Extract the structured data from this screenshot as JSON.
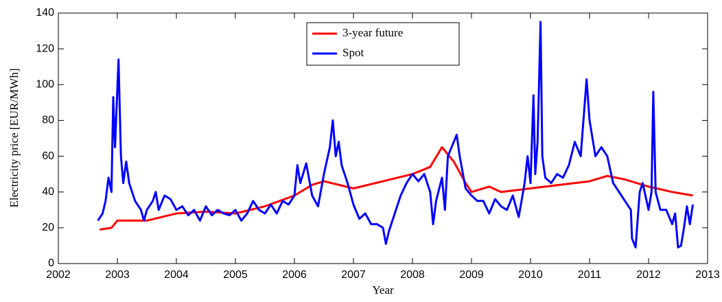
{
  "chart_data": {
    "type": "line",
    "xlabel": "Year",
    "ylabel": "Electricity price [EUR/MWh]",
    "xlim": [
      2002,
      2013
    ],
    "xticks": [
      2002,
      2003,
      2004,
      2005,
      2006,
      2007,
      2008,
      2009,
      2010,
      2011,
      2012,
      2013
    ],
    "ylim": [
      0,
      140
    ],
    "yticks": [
      0,
      20,
      40,
      60,
      80,
      100,
      120,
      140
    ],
    "legend": "upper center",
    "series": [
      {
        "name": "3-year future",
        "color": "#ff0000",
        "x": [
          2002.7,
          2002.9,
          2003.0,
          2003.5,
          2004.0,
          2004.5,
          2005.0,
          2005.5,
          2006.0,
          2006.3,
          2006.5,
          2007.0,
          2007.5,
          2008.0,
          2008.3,
          2008.5,
          2008.7,
          2008.9,
          2009.0,
          2009.3,
          2009.5,
          2010.0,
          2010.5,
          2011.0,
          2011.3,
          2011.6,
          2012.0,
          2012.4,
          2012.75
        ],
        "values": [
          19,
          20,
          24,
          24,
          28,
          29,
          28,
          32,
          38,
          44,
          46,
          42,
          46,
          50,
          54,
          65,
          57,
          45,
          40,
          43,
          40,
          42,
          44,
          46,
          49,
          47,
          43,
          40,
          38
        ]
      },
      {
        "name": "Spot",
        "color": "#0000ff",
        "x": [
          2002.67,
          2002.75,
          2002.8,
          2002.85,
          2002.9,
          2002.93,
          2002.96,
          2003.02,
          2003.06,
          2003.1,
          2003.15,
          2003.2,
          2003.3,
          2003.4,
          2003.45,
          2003.5,
          2003.6,
          2003.65,
          2003.7,
          2003.8,
          2003.9,
          2004.0,
          2004.1,
          2004.2,
          2004.3,
          2004.4,
          2004.5,
          2004.6,
          2004.7,
          2004.8,
          2004.9,
          2005.0,
          2005.1,
          2005.2,
          2005.3,
          2005.4,
          2005.5,
          2005.6,
          2005.7,
          2005.8,
          2005.9,
          2006.0,
          2006.05,
          2006.1,
          2006.2,
          2006.3,
          2006.4,
          2006.5,
          2006.6,
          2006.65,
          2006.7,
          2006.75,
          2006.8,
          2006.9,
          2007.0,
          2007.1,
          2007.2,
          2007.3,
          2007.4,
          2007.5,
          2007.55,
          2007.6,
          2007.7,
          2007.8,
          2007.9,
          2008.0,
          2008.1,
          2008.2,
          2008.3,
          2008.35,
          2008.4,
          2008.5,
          2008.55,
          2008.6,
          2008.7,
          2008.75,
          2008.8,
          2008.9,
          2009.0,
          2009.1,
          2009.2,
          2009.3,
          2009.4,
          2009.5,
          2009.6,
          2009.7,
          2009.8,
          2009.9,
          2009.95,
          2010.0,
          2010.05,
          2010.08,
          2010.12,
          2010.17,
          2010.2,
          2010.25,
          2010.35,
          2010.45,
          2010.55,
          2010.65,
          2010.75,
          2010.85,
          2010.95,
          2011.0,
          2011.1,
          2011.2,
          2011.3,
          2011.4,
          2011.5,
          2011.6,
          2011.7,
          2011.72,
          2011.78,
          2011.85,
          2011.9,
          2012.0,
          2012.05,
          2012.08,
          2012.12,
          2012.2,
          2012.3,
          2012.4,
          2012.45,
          2012.5,
          2012.55,
          2012.6,
          2012.65,
          2012.7,
          2012.75
        ],
        "values": [
          24,
          28,
          35,
          48,
          40,
          93,
          65,
          114,
          60,
          45,
          57,
          45,
          35,
          30,
          24,
          30,
          35,
          40,
          30,
          38,
          36,
          30,
          32,
          27,
          30,
          24,
          32,
          27,
          30,
          28,
          27,
          30,
          24,
          28,
          35,
          30,
          28,
          33,
          28,
          35,
          33,
          38,
          55,
          45,
          56,
          38,
          32,
          50,
          65,
          80,
          60,
          68,
          55,
          45,
          33,
          25,
          28,
          22,
          22,
          20,
          11,
          18,
          28,
          38,
          45,
          50,
          46,
          50,
          40,
          22,
          35,
          48,
          30,
          60,
          68,
          72,
          60,
          42,
          38,
          35,
          35,
          28,
          36,
          32,
          30,
          38,
          26,
          45,
          60,
          45,
          94,
          50,
          68,
          135,
          60,
          48,
          45,
          50,
          48,
          55,
          68,
          60,
          103,
          80,
          60,
          65,
          60,
          45,
          40,
          35,
          30,
          14,
          9,
          40,
          45,
          30,
          40,
          96,
          40,
          30,
          30,
          22,
          28,
          9,
          10,
          20,
          32,
          22,
          33
        ]
      }
    ]
  }
}
